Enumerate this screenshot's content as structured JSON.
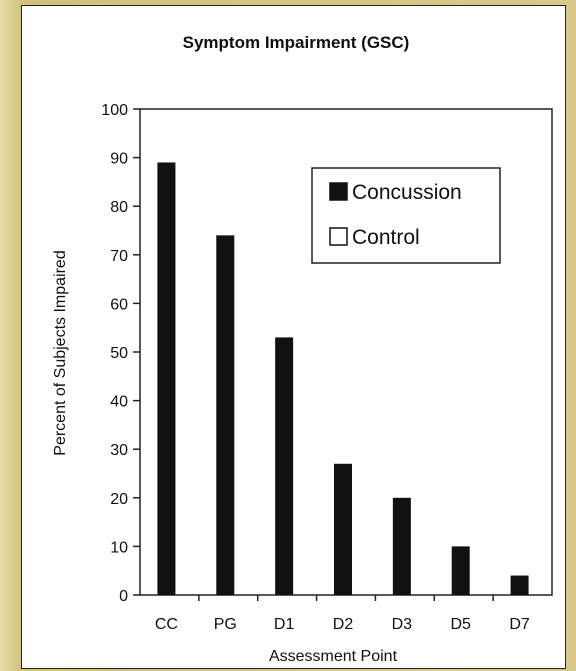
{
  "chart_data": {
    "type": "bar",
    "title": "Symptom Impairment (GSC)",
    "xlabel": "Assessment Point",
    "ylabel": "Percent of Subjects Impaired",
    "categories": [
      "CC",
      "PG",
      "D1",
      "D2",
      "D3",
      "D5",
      "D7"
    ],
    "series": [
      {
        "name": "Concussion",
        "values": [
          89,
          74,
          53,
          27,
          20,
          10,
          4
        ],
        "color": "#111111"
      },
      {
        "name": "Control",
        "values": [
          0,
          0,
          0,
          0,
          0,
          0,
          0
        ],
        "color": "#ffffff"
      }
    ],
    "ylim": [
      0,
      100
    ],
    "yticks": [
      0,
      10,
      20,
      30,
      40,
      50,
      60,
      70,
      80,
      90,
      100
    ],
    "grid": false,
    "legend_position": "top-right"
  }
}
